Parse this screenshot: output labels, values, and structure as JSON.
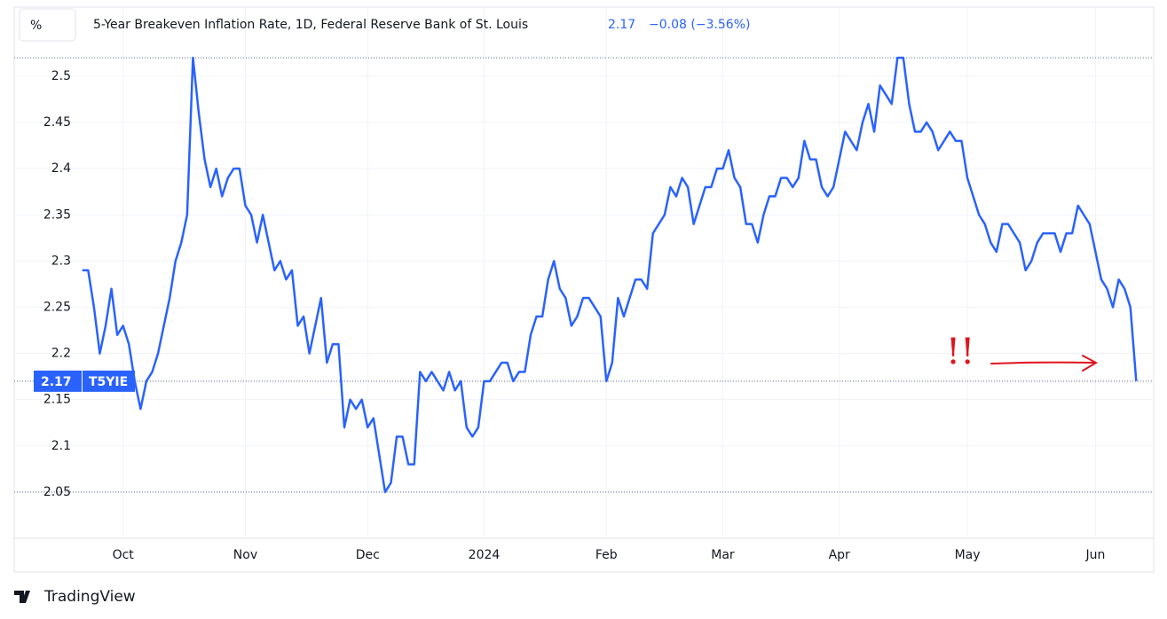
{
  "chart_data": {
    "type": "line",
    "unit_button": "%",
    "title": "5-Year Breakeven Inflation Rate, 1D, Federal Reserve Bank of St. Louis",
    "last_value": 2.17,
    "change_label": "−0.08 (−3.56%)",
    "series": [
      {
        "name": "T5YIE",
        "color": "#2962ff",
        "values": [
          2.29,
          2.29,
          2.25,
          2.2,
          2.23,
          2.27,
          2.22,
          2.23,
          2.21,
          2.17,
          2.14,
          2.17,
          2.18,
          2.2,
          2.23,
          2.26,
          2.3,
          2.32,
          2.35,
          2.52,
          2.46,
          2.41,
          2.38,
          2.4,
          2.37,
          2.39,
          2.4,
          2.4,
          2.36,
          2.35,
          2.32,
          2.35,
          2.32,
          2.29,
          2.3,
          2.28,
          2.29,
          2.23,
          2.24,
          2.2,
          2.23,
          2.26,
          2.19,
          2.21,
          2.21,
          2.12,
          2.15,
          2.14,
          2.15,
          2.12,
          2.13,
          2.09,
          2.05,
          2.06,
          2.11,
          2.11,
          2.08,
          2.08,
          2.18,
          2.17,
          2.18,
          2.17,
          2.16,
          2.18,
          2.16,
          2.17,
          2.12,
          2.11,
          2.12,
          2.17,
          2.17,
          2.18,
          2.19,
          2.19,
          2.17,
          2.18,
          2.18,
          2.22,
          2.24,
          2.24,
          2.28,
          2.3,
          2.27,
          2.26,
          2.23,
          2.24,
          2.26,
          2.26,
          2.25,
          2.24,
          2.17,
          2.19,
          2.26,
          2.24,
          2.26,
          2.28,
          2.28,
          2.27,
          2.33,
          2.34,
          2.35,
          2.38,
          2.37,
          2.39,
          2.38,
          2.34,
          2.36,
          2.38,
          2.38,
          2.4,
          2.4,
          2.42,
          2.39,
          2.38,
          2.34,
          2.34,
          2.32,
          2.35,
          2.37,
          2.37,
          2.39,
          2.39,
          2.38,
          2.39,
          2.43,
          2.41,
          2.41,
          2.38,
          2.37,
          2.38,
          2.41,
          2.44,
          2.43,
          2.42,
          2.45,
          2.47,
          2.44,
          2.49,
          2.48,
          2.47,
          2.52,
          2.52,
          2.47,
          2.44,
          2.44,
          2.45,
          2.44,
          2.42,
          2.43,
          2.44,
          2.43,
          2.43,
          2.39,
          2.37,
          2.35,
          2.34,
          2.32,
          2.31,
          2.34,
          2.34,
          2.33,
          2.32,
          2.29,
          2.3,
          2.32,
          2.33,
          2.33,
          2.33,
          2.31,
          2.33,
          2.33,
          2.36,
          2.35,
          2.34,
          2.31,
          2.28,
          2.27,
          2.25,
          2.28,
          2.27,
          2.25,
          2.17
        ]
      }
    ],
    "xlim": [
      -11.7,
      184
    ],
    "xticks": [
      {
        "value": 7,
        "label": "Oct"
      },
      {
        "value": 28,
        "label": "Nov"
      },
      {
        "value": 49,
        "label": "Dec"
      },
      {
        "value": 69,
        "label": "2024"
      },
      {
        "value": 90,
        "label": "Feb"
      },
      {
        "value": 110,
        "label": "Mar"
      },
      {
        "value": 130,
        "label": "Apr"
      },
      {
        "value": 152,
        "label": "May"
      },
      {
        "value": 174,
        "label": "Jun"
      }
    ],
    "ylim": [
      2.0,
      2.57
    ],
    "yticks": [
      2.05,
      2.1,
      2.15,
      2.2,
      2.25,
      2.3,
      2.35,
      2.4,
      2.45,
      2.5
    ],
    "reference_lines": [
      2.52,
      2.05
    ],
    "grid": true,
    "annotation": "!!",
    "annotation_color": "#e0141e",
    "brand": "TradingView"
  }
}
